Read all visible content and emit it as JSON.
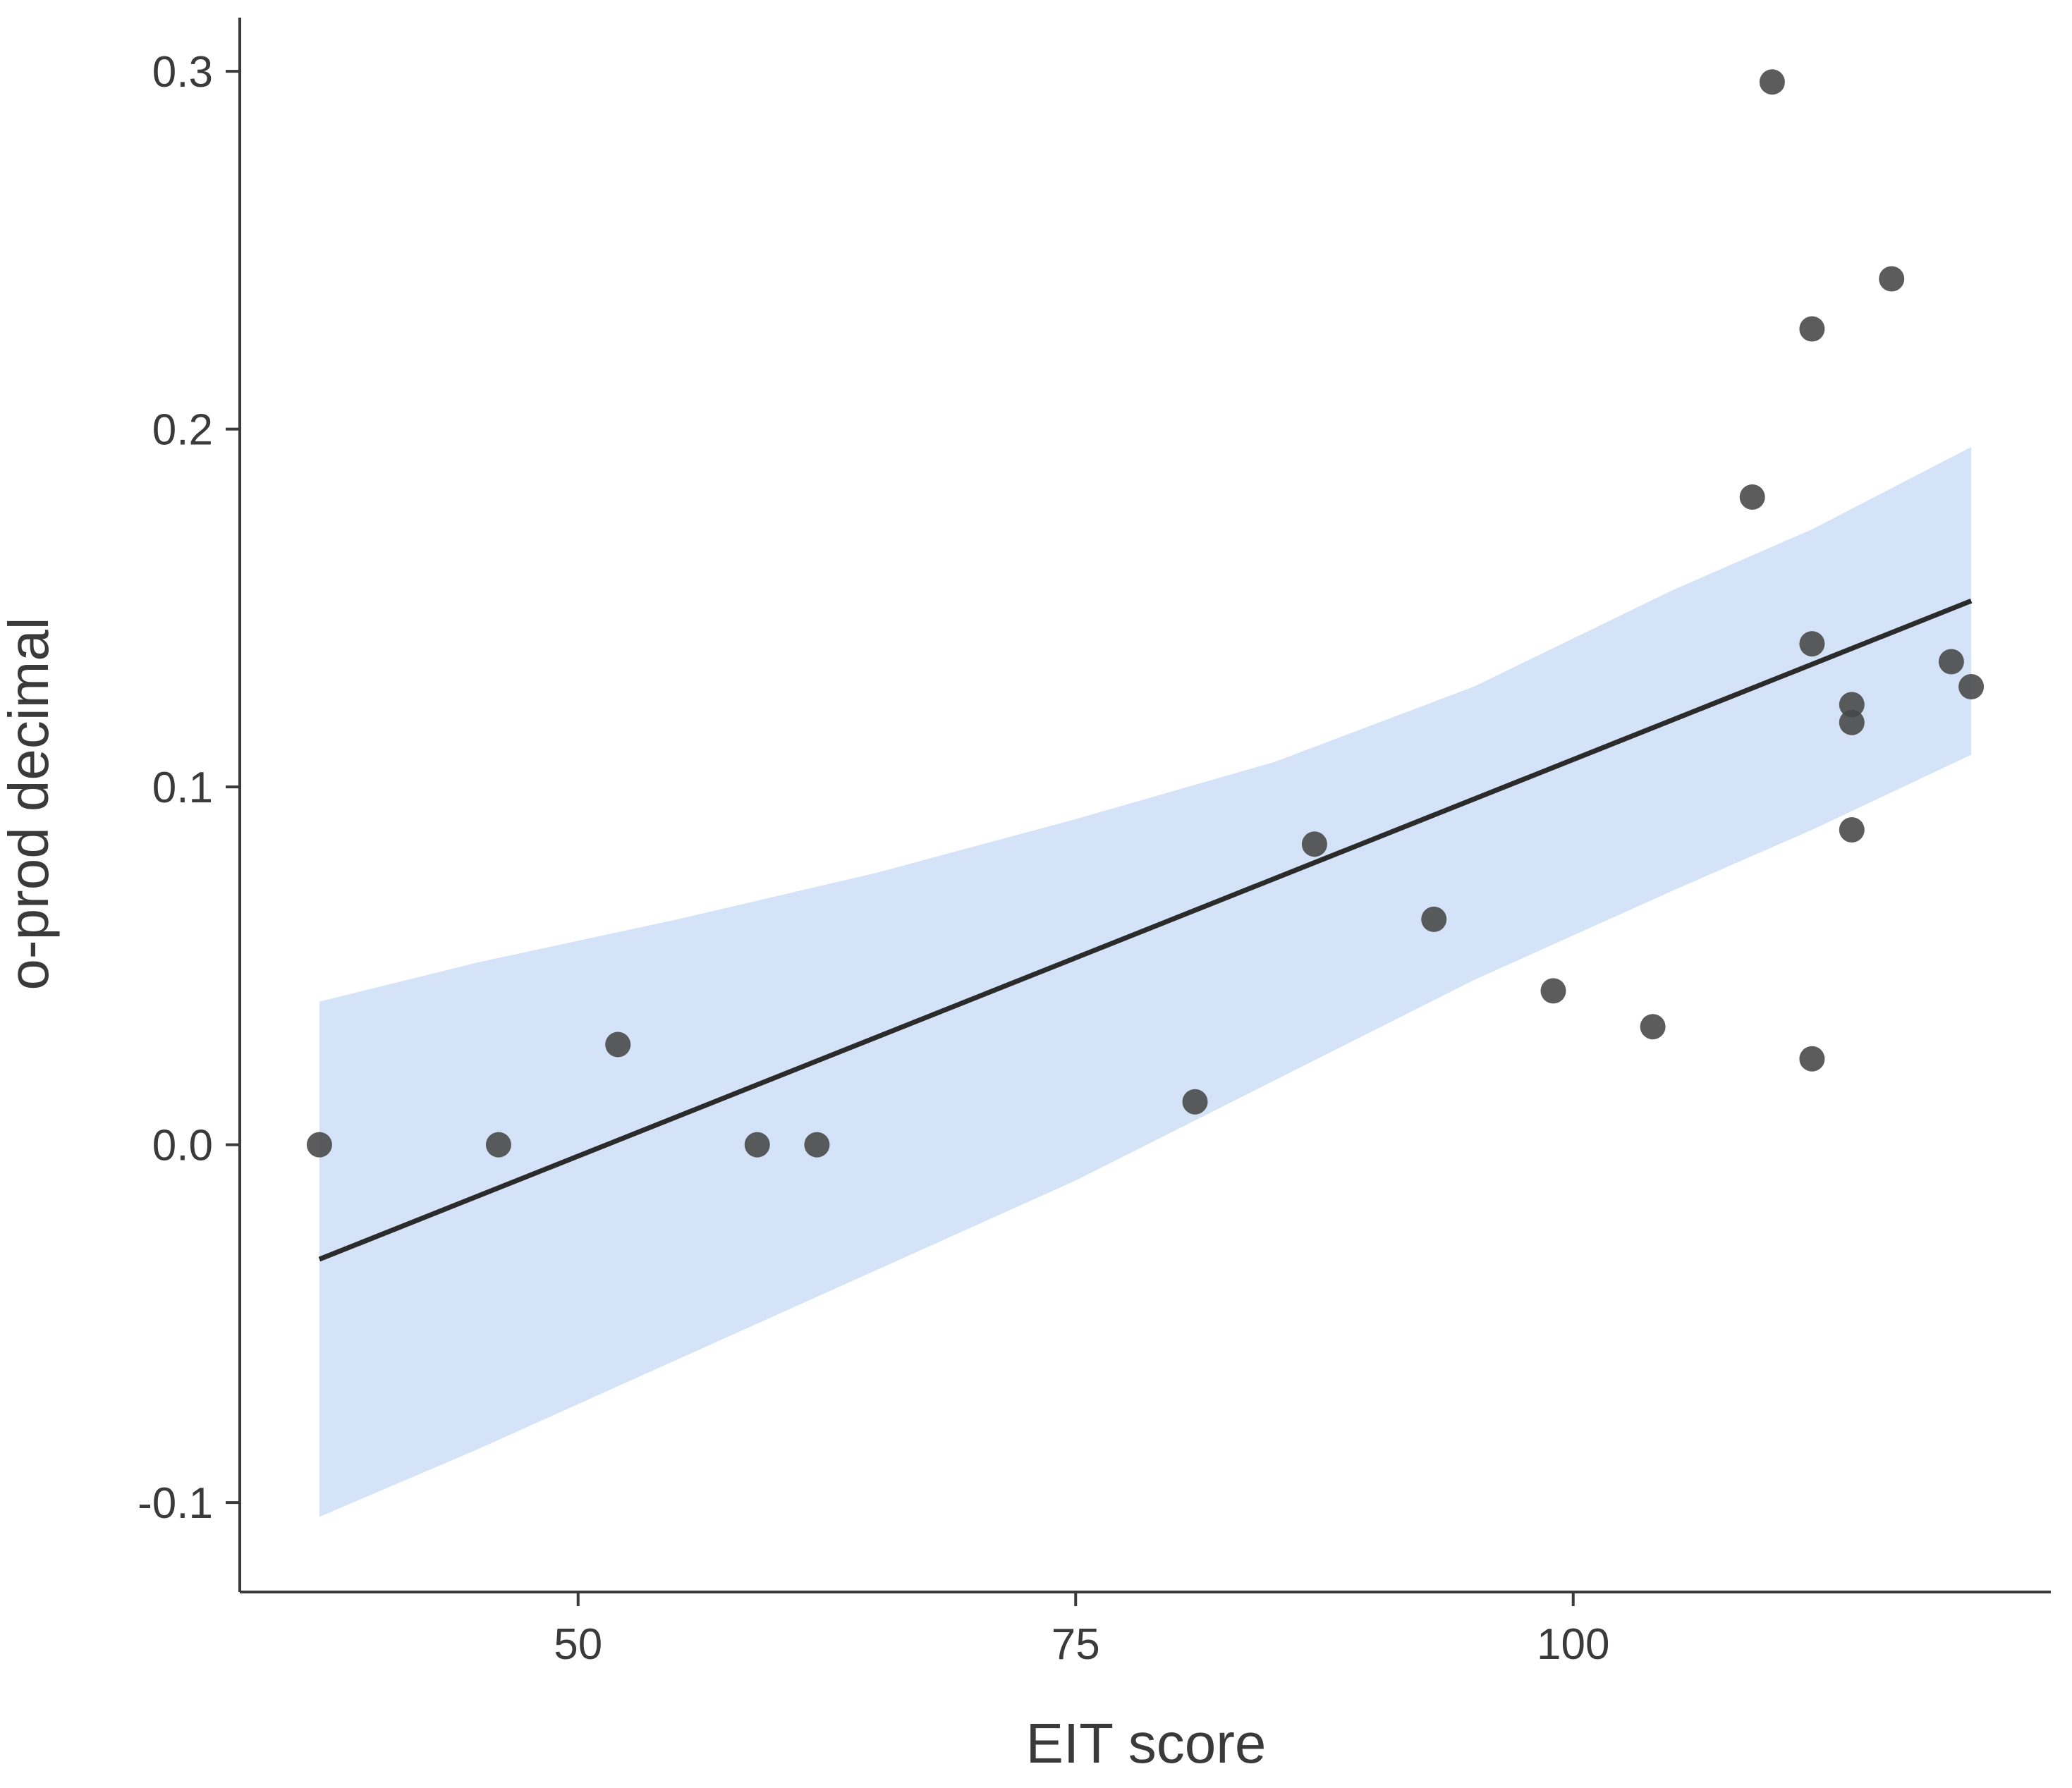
{
  "chart_data": {
    "type": "scatter",
    "title": "",
    "xlabel": "EIT score",
    "ylabel": "o-prod decimal",
    "xlim": [
      33,
      124
    ],
    "ylim": [
      -0.125,
      0.315
    ],
    "x_ticks": [
      50,
      75,
      100
    ],
    "x_tick_labels": [
      "50",
      "75",
      "100"
    ],
    "y_ticks": [
      -0.1,
      0.0,
      0.1,
      0.2,
      0.3
    ],
    "y_tick_labels": [
      "-0.1",
      "0.0",
      "0.1",
      "0.2",
      "0.3"
    ],
    "grid": false,
    "legend": "none",
    "points": [
      {
        "x": 37,
        "y": 0.0
      },
      {
        "x": 46,
        "y": 0.0
      },
      {
        "x": 52,
        "y": 0.028
      },
      {
        "x": 59,
        "y": 0.0
      },
      {
        "x": 62,
        "y": 0.0
      },
      {
        "x": 81,
        "y": 0.012
      },
      {
        "x": 87,
        "y": 0.084
      },
      {
        "x": 93,
        "y": 0.063
      },
      {
        "x": 99,
        "y": 0.043
      },
      {
        "x": 104,
        "y": 0.033
      },
      {
        "x": 109,
        "y": 0.181
      },
      {
        "x": 110,
        "y": 0.297
      },
      {
        "x": 112,
        "y": 0.228
      },
      {
        "x": 112,
        "y": 0.14
      },
      {
        "x": 112,
        "y": 0.024
      },
      {
        "x": 114,
        "y": 0.123
      },
      {
        "x": 114,
        "y": 0.118
      },
      {
        "x": 114,
        "y": 0.088
      },
      {
        "x": 116,
        "y": 0.242
      },
      {
        "x": 119,
        "y": 0.135
      },
      {
        "x": 120,
        "y": 0.128
      }
    ],
    "fit_line": {
      "x": [
        37,
        120
      ],
      "y": [
        -0.032,
        0.152
      ]
    },
    "confidence_band": {
      "x": [
        37,
        45,
        55,
        65,
        75,
        85,
        95,
        105,
        112,
        120
      ],
      "lower": [
        -0.104,
        -0.085,
        -0.06,
        -0.035,
        -0.01,
        0.018,
        0.046,
        0.071,
        0.088,
        0.109
      ],
      "upper": [
        0.04,
        0.051,
        0.063,
        0.076,
        0.091,
        0.107,
        0.128,
        0.155,
        0.172,
        0.195
      ]
    },
    "colors": {
      "points": "#464646",
      "line": "#2b2b2b",
      "band": "#d4e3f7",
      "axis": "#3a3a3a"
    }
  }
}
